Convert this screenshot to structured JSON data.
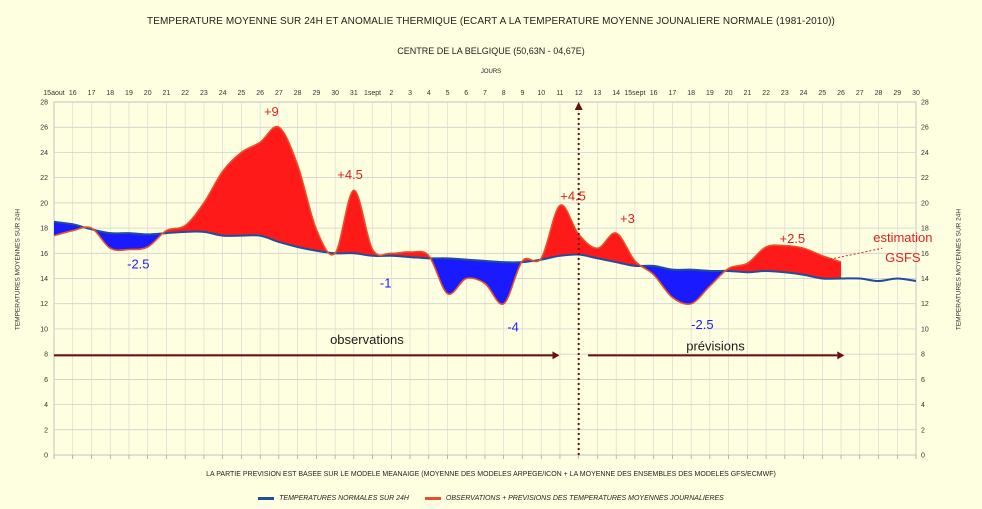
{
  "chart_data": {
    "type": "area",
    "title": "TEMPERATURE MOYENNE SUR 24H ET  ANOMALIE THERMIQUE (ECART A LA TEMPERATURE MOYENNE JOUNALIERE NORMALE (1981-2010))",
    "subtitle": "CENTRE DE LA BELGIQUE (50,63N - 04,67E)",
    "xlabel": "JOURS",
    "ylabel": "TEMPERATURES MOYENNES SUR 24H",
    "footnote": "LA PARTIE PREVISION EST BASEE SUR LE MODELE MEANAIGE (MOYENNE DES MODELES  ARPEGE/ICON + LA MOYENNE DES ENSEMBLES DES MODELES GFS/ECMWF)",
    "ylim": [
      0,
      28
    ],
    "yticks": [
      "0",
      "2",
      "4",
      "6",
      "8",
      "10",
      "12",
      "14",
      "16",
      "18",
      "20",
      "22",
      "24",
      "26",
      "28"
    ],
    "x_tick_labels": [
      "15aout",
      "16",
      "17",
      "18",
      "19",
      "20",
      "21",
      "22",
      "23",
      "24",
      "25",
      "26",
      "27",
      "28",
      "29",
      "30",
      "31",
      "1sept",
      "2",
      "3",
      "4",
      "5",
      "6",
      "7",
      "8",
      "9",
      "10",
      "11",
      "12",
      "13",
      "14",
      "15sept",
      "16",
      "17",
      "18",
      "19",
      "20",
      "21",
      "22",
      "23",
      "24",
      "25",
      "26",
      "27",
      "28",
      "29",
      "30"
    ],
    "grid": true,
    "series": [
      {
        "name": "TEMPERATURES NORMALES SUR 24H",
        "color": "#1f4e9c",
        "values": [
          18.5,
          18.3,
          17.9,
          17.6,
          17.6,
          17.5,
          17.6,
          17.7,
          17.7,
          17.4,
          17.4,
          17.4,
          16.9,
          16.5,
          16.2,
          16.0,
          16.0,
          15.8,
          15.8,
          15.7,
          15.6,
          15.6,
          15.5,
          15.4,
          15.3,
          15.3,
          15.5,
          15.8,
          15.9,
          15.6,
          15.3,
          15.0,
          15.0,
          14.7,
          14.7,
          14.6,
          14.6,
          14.5,
          14.6,
          14.5,
          14.3,
          14.0,
          14.0,
          14.0,
          13.8,
          14.0,
          13.8
        ]
      },
      {
        "name": "OBSERVATIONS + PREVISIONS DES TEMPERATURES MOYENNES JOURNALIERES",
        "color": "#e8502a",
        "values": [
          17.4,
          17.8,
          18.0,
          16.4,
          16.3,
          16.5,
          17.8,
          18.2,
          20.0,
          22.5,
          24.0,
          24.8,
          26.0,
          23.0,
          17.9,
          16.0,
          21.0,
          16.3,
          16.0,
          16.1,
          15.8,
          12.8,
          14.0,
          13.6,
          12.0,
          15.4,
          15.6,
          19.8,
          17.5,
          16.4,
          17.6,
          15.4,
          14.3,
          12.5,
          12.0,
          13.4,
          14.8,
          15.2,
          16.5,
          16.6,
          16.4,
          15.8,
          15.3
        ]
      }
    ],
    "annotations": [
      "+9",
      "+4.5",
      "+4.5",
      "+3",
      "+2.5",
      "-2.5",
      "-1",
      "-4",
      "-2.5",
      "observations",
      "prévisions",
      "estimation",
      "GSFS"
    ],
    "annotation_colors": {
      "warm": "#e02020",
      "cold": "#1a1aff",
      "text": "#1a1a1a"
    },
    "fill_colors": {
      "warm": "#ff1a1a",
      "cold": "#1a1aff"
    },
    "legend_position": "bottom"
  }
}
